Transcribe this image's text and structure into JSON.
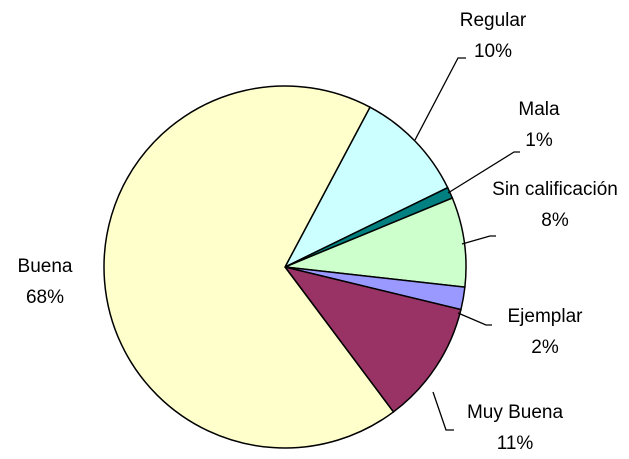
{
  "chart_data": {
    "type": "pie",
    "categories": [
      "Regular",
      "Mala",
      "Sin calificación",
      "Ejemplar",
      "Muy Buena",
      "Buena"
    ],
    "values": [
      10,
      1,
      8,
      2,
      11,
      68
    ],
    "value_labels": [
      "10%",
      "1%",
      "8%",
      "2%",
      "11%",
      "68%"
    ],
    "colors": [
      "#ccffff",
      "#008080",
      "#ccffcc",
      "#9999ff",
      "#993366",
      "#ffffcc"
    ]
  }
}
